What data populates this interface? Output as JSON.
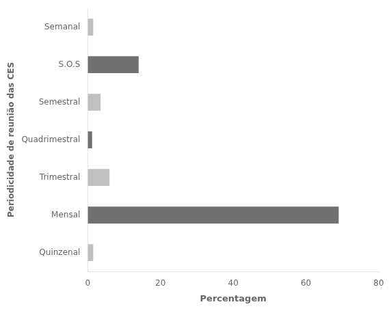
{
  "chart_data": {
    "type": "bar",
    "orientation": "horizontal",
    "categories": [
      "Quinzenal",
      "Mensal",
      "Trimestral",
      "Quadrimestral",
      "Semestral",
      "S.O.S",
      "Semanal"
    ],
    "values": [
      1.5,
      69,
      6.0,
      1.2,
      3.5,
      14.0,
      1.5
    ],
    "colors": [
      "#c0c0c0",
      "#707070",
      "#c0c0c0",
      "#707070",
      "#c0c0c0",
      "#707070",
      "#c0c0c0"
    ],
    "xlabel": "Percentagem",
    "ylabel": "Periodicidade de reunião das CES",
    "xlim": [
      0,
      80
    ],
    "xticks": [
      0,
      20,
      40,
      60,
      80
    ],
    "grid": false
  }
}
